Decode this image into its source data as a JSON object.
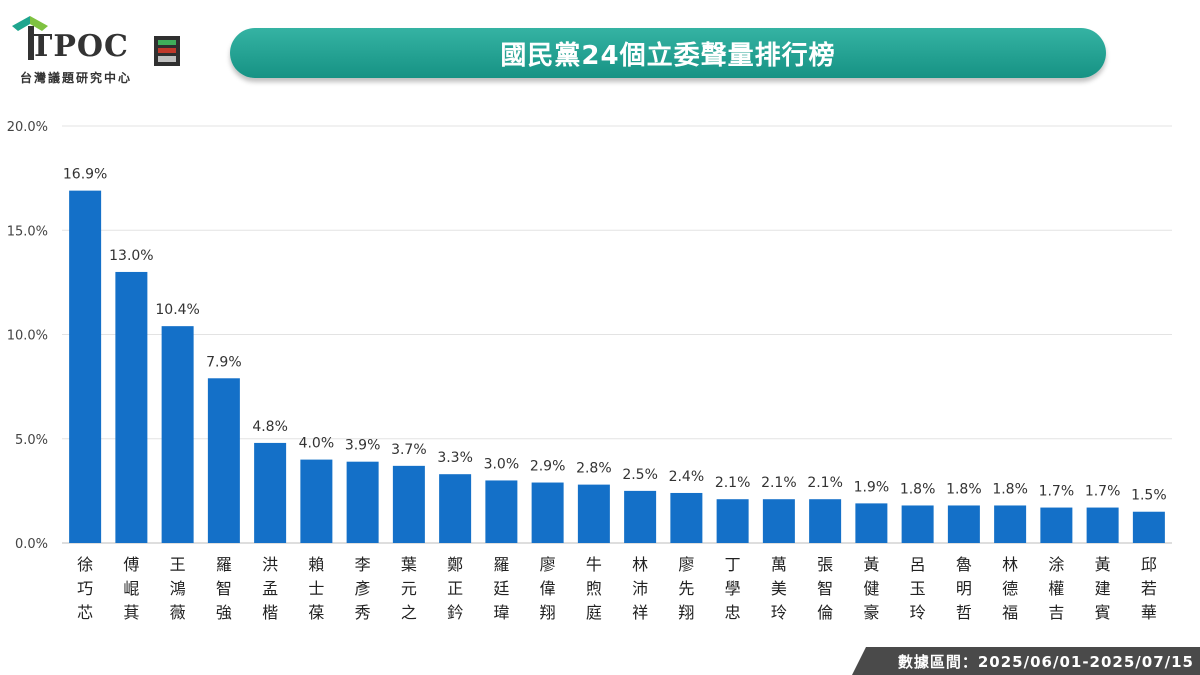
{
  "brand": {
    "name": "TPOC",
    "subtitle": "台灣議題研究中心",
    "colors": {
      "green": "#1ea58e",
      "dark": "#333333"
    }
  },
  "title": "國民黨24個立委聲量排行榜",
  "footer": "數據區間：2025/06/01-2025/07/15",
  "colors": {
    "bar": "#1470c8",
    "banner": "#1ea58e",
    "footer_bg": "#4a4a4a"
  },
  "chart_data": {
    "type": "bar",
    "categories": [
      "徐巧芯",
      "傅崐萁",
      "王鴻薇",
      "羅智強",
      "洪孟楷",
      "賴士葆",
      "李彥秀",
      "葉元之",
      "鄭正鈐",
      "羅廷瑋",
      "廖偉翔",
      "牛煦庭",
      "林沛祥",
      "廖先翔",
      "丁學忠",
      "萬美玲",
      "張智倫",
      "黃健豪",
      "呂玉玲",
      "魯明哲",
      "林德福",
      "涂權吉",
      "黃建賓",
      "邱若華"
    ],
    "values": [
      16.9,
      13.0,
      10.4,
      7.9,
      4.8,
      4.0,
      3.9,
      3.7,
      3.3,
      3.0,
      2.9,
      2.8,
      2.5,
      2.4,
      2.1,
      2.1,
      2.1,
      1.9,
      1.8,
      1.8,
      1.8,
      1.7,
      1.7,
      1.5
    ],
    "value_labels": [
      "16.9%",
      "13.0%",
      "10.4%",
      "7.9%",
      "4.8%",
      "4.0%",
      "3.9%",
      "3.7%",
      "3.3%",
      "3.0%",
      "2.9%",
      "2.8%",
      "2.5%",
      "2.4%",
      "2.1%",
      "2.1%",
      "2.1%",
      "1.9%",
      "1.8%",
      "1.8%",
      "1.8%",
      "1.7%",
      "1.7%",
      "1.5%"
    ],
    "yticks": [
      0,
      5,
      10,
      15,
      20
    ],
    "ytick_labels": [
      "0.0%",
      "5.0%",
      "10.0%",
      "15.0%",
      "20.0%"
    ],
    "ylim": [
      0,
      20
    ],
    "grid": true,
    "legend": "none"
  }
}
